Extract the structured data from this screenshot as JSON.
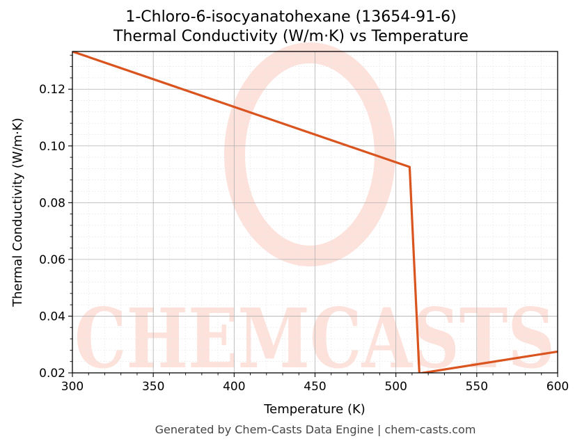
{
  "chart_data": {
    "type": "line",
    "title": "1-Chloro-6-isocyanatohexane (13654-91-6)",
    "subtitle": "Thermal Conductivity (W/m·K) vs Temperature",
    "xlabel": "Temperature (K)",
    "ylabel": "Thermal Conductivity (W/m·K)",
    "xlim": [
      300,
      600
    ],
    "ylim": [
      0.02,
      0.1333
    ],
    "xticks": [
      "300",
      "350",
      "400",
      "450",
      "500",
      "550",
      "600"
    ],
    "yticks": [
      "0.02",
      "0.04",
      "0.06",
      "0.08",
      "0.10",
      "0.12"
    ],
    "grid": true,
    "series": [
      {
        "color": "#d9541e",
        "x": [
          300,
          508.5,
          514.5,
          600
        ],
        "y": [
          0.1333,
          0.0926,
          0.0198,
          0.0275
        ]
      }
    ]
  },
  "watermark": {
    "text": "CHEMCASTS",
    "color": "#fde2dc"
  },
  "footer": "Generated by Chem-Casts Data Engine | chem-casts.com"
}
